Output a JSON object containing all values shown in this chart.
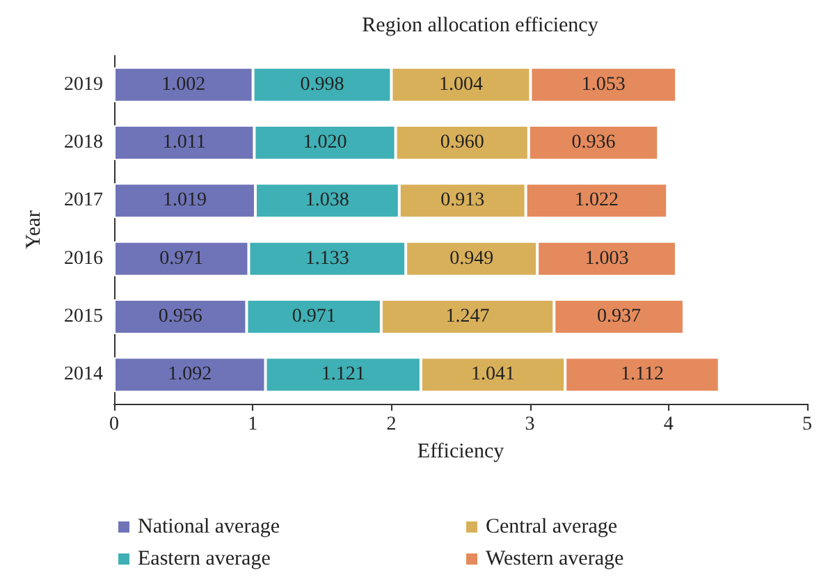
{
  "chart_data": {
    "type": "bar",
    "orientation": "horizontal",
    "stacked": true,
    "title": "Region allocation efficiency",
    "xlabel": "Efficiency",
    "ylabel": "Year",
    "categories": [
      "2019",
      "2018",
      "2017",
      "2016",
      "2015",
      "2014"
    ],
    "series": [
      {
        "name": "National average",
        "color": "#6f74b8",
        "values": [
          1.002,
          1.011,
          1.019,
          0.971,
          0.956,
          1.092
        ],
        "value_labels": [
          "1.002",
          "1.011",
          "1.019",
          "0.971",
          "0.956",
          "1.092"
        ]
      },
      {
        "name": "Eastern average",
        "color": "#3fb0b5",
        "values": [
          0.998,
          1.02,
          1.038,
          1.133,
          0.971,
          1.121
        ],
        "value_labels": [
          "0.998",
          "1.020",
          "1.038",
          "1.133",
          "0.971",
          "1.121"
        ]
      },
      {
        "name": "Central average",
        "color": "#d9b05a",
        "values": [
          1.004,
          0.96,
          0.913,
          0.949,
          1.247,
          1.041
        ],
        "value_labels": [
          "1.004",
          "0.960",
          "0.913",
          "0.949",
          "1.247",
          "1.041"
        ]
      },
      {
        "name": "Western average",
        "color": "#e58a5c",
        "values": [
          1.053,
          0.936,
          1.022,
          1.003,
          0.937,
          1.112
        ],
        "value_labels": [
          "1.053",
          "0.936",
          "1.022",
          "1.003",
          "0.937",
          "1.112"
        ]
      }
    ],
    "xlim": [
      0,
      5
    ],
    "xticks": [
      0,
      1,
      2,
      3,
      4,
      5
    ],
    "legend": "bottom"
  }
}
